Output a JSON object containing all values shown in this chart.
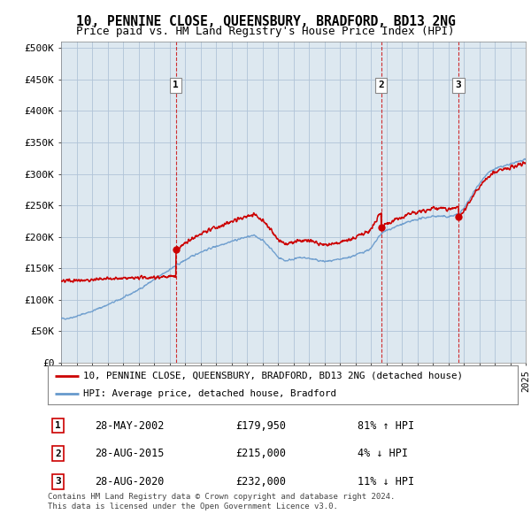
{
  "title": "10, PENNINE CLOSE, QUEENSBURY, BRADFORD, BD13 2NG",
  "subtitle": "Price paid vs. HM Land Registry's House Price Index (HPI)",
  "title_fontsize": 10.5,
  "subtitle_fontsize": 9,
  "background_color": "#ffffff",
  "plot_bg_color": "#dde8f0",
  "grid_color": "#b0c4d8",
  "red_line_color": "#cc0000",
  "blue_line_color": "#6699cc",
  "ytick_labels": [
    "£0",
    "£50K",
    "£100K",
    "£150K",
    "£200K",
    "£250K",
    "£300K",
    "£350K",
    "£400K",
    "£450K",
    "£500K"
  ],
  "yticks": [
    0,
    50000,
    100000,
    150000,
    200000,
    250000,
    300000,
    350000,
    400000,
    450000,
    500000
  ],
  "xlim_start": 1995.0,
  "xlim_end": 2025.0,
  "ylim_min": 0,
  "ylim_max": 510000,
  "legend_red_label": "10, PENNINE CLOSE, QUEENSBURY, BRADFORD, BD13 2NG (detached house)",
  "legend_blue_label": "HPI: Average price, detached house, Bradford",
  "sales": [
    {
      "label": "1",
      "date": "28-MAY-2002",
      "price": 179950,
      "price_str": "£179,950",
      "pct": "81%",
      "dir": "↑",
      "x": 2002.41
    },
    {
      "label": "2",
      "date": "28-AUG-2015",
      "price": 215000,
      "price_str": "£215,000",
      "pct": "4%",
      "dir": "↓",
      "x": 2015.66
    },
    {
      "label": "3",
      "date": "28-AUG-2020",
      "price": 232000,
      "price_str": "£232,000",
      "pct": "11%",
      "dir": "↓",
      "x": 2020.66
    }
  ],
  "footer_line1": "Contains HM Land Registry data © Crown copyright and database right 2024.",
  "footer_line2": "This data is licensed under the Open Government Licence v3.0."
}
